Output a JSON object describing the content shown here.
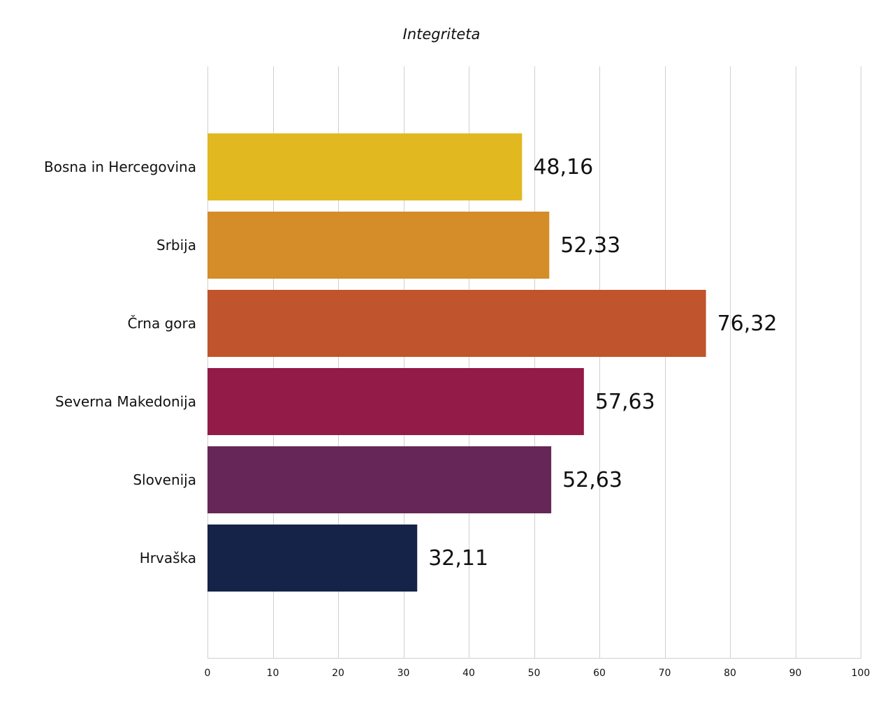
{
  "chart_data": {
    "type": "bar",
    "orientation": "horizontal",
    "title": "Integriteta",
    "categories": [
      "Bosna in Hercegovina",
      "Srbija",
      "Črna gora",
      "Severna Makedonija",
      "Slovenija",
      "Hrvaška"
    ],
    "values": [
      48.16,
      52.33,
      76.32,
      57.63,
      52.63,
      32.11
    ],
    "data_labels": [
      "48,16",
      "52,33",
      "76,32",
      "57,63",
      "52,63",
      "32,11"
    ],
    "colors": [
      "#E1B81F",
      "#D48D29",
      "#C0542D",
      "#921B47",
      "#662657",
      "#152348"
    ],
    "xlim": [
      0,
      100
    ],
    "x_ticks": [
      0,
      10,
      20,
      30,
      40,
      50,
      60,
      70,
      80,
      90,
      100
    ],
    "xlabel": "",
    "ylabel": "",
    "grid": "vertical",
    "legend": "none"
  }
}
